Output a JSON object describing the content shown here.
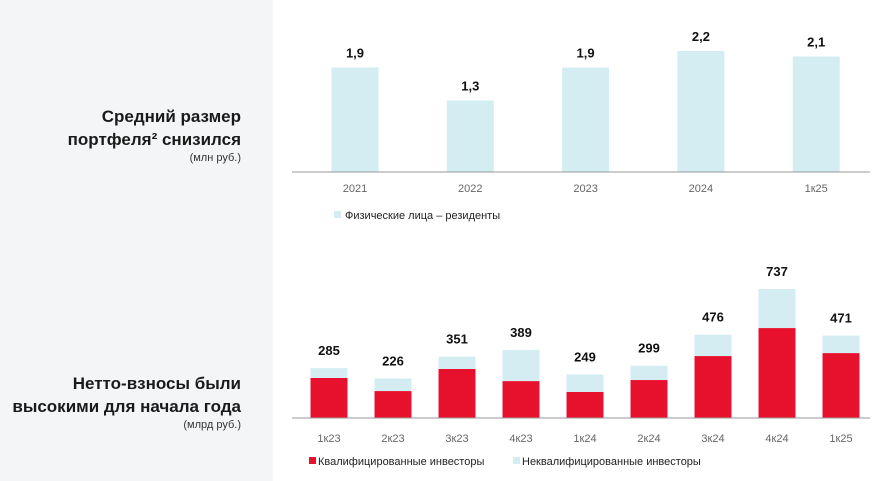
{
  "panel": {
    "top_title_line1": "Средний размер",
    "top_title_line2": "портфеля² снизился",
    "top_unit": "(млн руб.)",
    "bottom_title_line1": "Нетто-взносы были",
    "bottom_title_line2": "высокими для начала года",
    "bottom_unit": "(млрд руб.)"
  },
  "colors": {
    "light_blue": "#d3edf3",
    "red": "#e8112d",
    "panel_bg": "#f4f5f7"
  },
  "chart_data": [
    {
      "type": "bar",
      "categories": [
        "2021",
        "2022",
        "2023",
        "2024",
        "1к25"
      ],
      "series": [
        {
          "name": "Физические лица – резиденты",
          "values": [
            1.9,
            1.3,
            1.9,
            2.2,
            2.1
          ]
        }
      ],
      "data_labels": [
        "1,9",
        "1,3",
        "1,9",
        "2,2",
        "2,1"
      ],
      "legend": "bottom-left",
      "grid": false
    },
    {
      "type": "bar",
      "stacked": true,
      "categories": [
        "1к23",
        "2к23",
        "3к23",
        "4к23",
        "1к24",
        "2к24",
        "3к24",
        "4к24",
        "1к25"
      ],
      "totals": [
        285,
        226,
        351,
        389,
        249,
        299,
        476,
        737,
        471
      ],
      "series": [
        {
          "name": "Квалифицированные инвесторы",
          "values": [
            229,
            154,
            280,
            211,
            149,
            217,
            354,
            514,
            371
          ]
        },
        {
          "name": "Неквалифицированные инвесторы",
          "values": [
            56,
            72,
            71,
            178,
            100,
            82,
            122,
            223,
            100
          ]
        }
      ],
      "legend": "bottom-left",
      "grid": false
    }
  ]
}
